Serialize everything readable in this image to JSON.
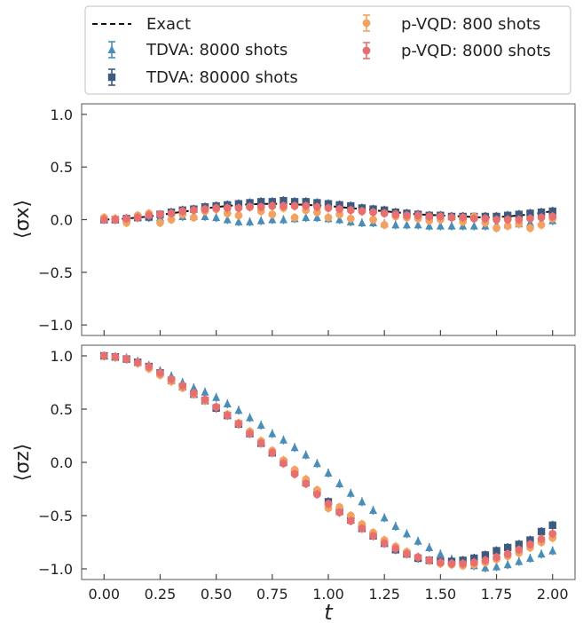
{
  "chart_data": [
    {
      "type": "scatter",
      "panel": "top",
      "title": "",
      "ylabel": "⟨σx⟩",
      "xlabel": "",
      "xlim": [
        -0.1,
        2.1
      ],
      "ylim": [
        -1.1,
        1.1
      ],
      "xticks": [
        0.0,
        0.25,
        0.5,
        0.75,
        1.0,
        1.25,
        1.5,
        1.75,
        2.0
      ],
      "yticks": [
        -1.0,
        -0.5,
        0.0,
        0.5,
        1.0
      ],
      "ytick_labels": [
        "−1.0",
        "−0.5",
        "0.0",
        "0.5",
        "1.0"
      ],
      "x": [
        0.0,
        0.05,
        0.1,
        0.15,
        0.2,
        0.25,
        0.3,
        0.35,
        0.4,
        0.45,
        0.5,
        0.55,
        0.6,
        0.65,
        0.7,
        0.75,
        0.8,
        0.85,
        0.9,
        0.95,
        1.0,
        1.05,
        1.1,
        1.15,
        1.2,
        1.25,
        1.3,
        1.35,
        1.4,
        1.45,
        1.5,
        1.55,
        1.6,
        1.65,
        1.7,
        1.75,
        1.8,
        1.85,
        1.9,
        1.95,
        2.0
      ],
      "series": [
        {
          "name": "Exact",
          "style": "dashed-line",
          "color": "#111111",
          "x": [
            0.0,
            0.1,
            0.2,
            0.3,
            0.4,
            0.5,
            0.6,
            0.7,
            0.8,
            0.9,
            1.0,
            1.1,
            1.2,
            1.3,
            1.4,
            1.5,
            1.6,
            1.7,
            1.8,
            1.9,
            2.0
          ],
          "values": [
            0.0,
            0.01,
            0.03,
            0.06,
            0.09,
            0.12,
            0.14,
            0.15,
            0.15,
            0.14,
            0.13,
            0.11,
            0.09,
            0.07,
            0.05,
            0.04,
            0.03,
            0.02,
            0.03,
            0.05,
            0.08
          ]
        },
        {
          "name": "TDVA: 8000 shots",
          "marker": "triangle",
          "color": "#4a8db8",
          "values": [
            0.0,
            0.0,
            0.01,
            0.02,
            0.02,
            0.02,
            0.03,
            0.03,
            0.03,
            0.03,
            0.02,
            0.0,
            -0.02,
            -0.02,
            -0.01,
            0.0,
            0.0,
            0.01,
            0.02,
            0.02,
            0.01,
            0.0,
            -0.02,
            -0.03,
            -0.03,
            -0.04,
            -0.05,
            -0.05,
            -0.05,
            -0.06,
            -0.06,
            -0.06,
            -0.06,
            -0.06,
            -0.06,
            -0.05,
            -0.05,
            -0.04,
            -0.03,
            -0.02,
            -0.01
          ]
        },
        {
          "name": "TDVA: 80000 shots",
          "marker": "square",
          "color": "#3d5a80",
          "values": [
            0.0,
            0.0,
            0.01,
            0.02,
            0.03,
            0.05,
            0.07,
            0.09,
            0.1,
            0.12,
            0.13,
            0.14,
            0.15,
            0.16,
            0.17,
            0.17,
            0.18,
            0.17,
            0.17,
            0.16,
            0.15,
            0.14,
            0.13,
            0.11,
            0.1,
            0.09,
            0.07,
            0.06,
            0.05,
            0.04,
            0.04,
            0.03,
            0.03,
            0.03,
            0.03,
            0.03,
            0.04,
            0.05,
            0.06,
            0.07,
            0.08
          ]
        },
        {
          "name": "p-VQD: 800 shots",
          "marker": "circle",
          "color": "#f4a261",
          "values": [
            0.02,
            0.01,
            -0.03,
            0.04,
            0.06,
            -0.03,
            0.0,
            0.05,
            0.02,
            0.08,
            0.1,
            0.06,
            0.04,
            0.12,
            0.08,
            0.05,
            0.11,
            0.02,
            0.09,
            0.07,
            0.02,
            0.05,
            0.01,
            0.08,
            0.0,
            -0.05,
            0.03,
            0.02,
            0.01,
            -0.01,
            0.0,
            0.02,
            -0.02,
            0.03,
            -0.03,
            -0.08,
            -0.06,
            -0.04,
            -0.08,
            -0.05,
            0.01
          ]
        },
        {
          "name": "p-VQD: 8000 shots",
          "marker": "circle",
          "color": "#e76f6f",
          "values": [
            0.0,
            0.0,
            0.01,
            0.02,
            0.04,
            0.05,
            0.06,
            0.08,
            0.09,
            0.1,
            0.11,
            0.11,
            0.11,
            0.12,
            0.12,
            0.13,
            0.13,
            0.13,
            0.13,
            0.12,
            0.11,
            0.1,
            0.09,
            0.08,
            0.07,
            0.06,
            0.05,
            0.04,
            0.04,
            0.03,
            0.03,
            0.02,
            0.02,
            0.01,
            0.01,
            0.0,
            0.0,
            0.0,
            0.01,
            0.02,
            0.03
          ]
        }
      ]
    },
    {
      "type": "scatter",
      "panel": "bottom",
      "title": "",
      "ylabel": "⟨σz⟩",
      "xlabel": "t",
      "xlim": [
        -0.1,
        2.1
      ],
      "ylim": [
        -1.1,
        1.1
      ],
      "xticks": [
        0.0,
        0.25,
        0.5,
        0.75,
        1.0,
        1.25,
        1.5,
        1.75,
        2.0
      ],
      "xtick_labels": [
        "0.00",
        "0.25",
        "0.50",
        "0.75",
        "1.00",
        "1.25",
        "1.50",
        "1.75",
        "2.00"
      ],
      "yticks": [
        -1.0,
        -0.5,
        0.0,
        0.5,
        1.0
      ],
      "ytick_labels": [
        "−1.0",
        "−0.5",
        "0.0",
        "0.5",
        "1.0"
      ],
      "x": [
        0.0,
        0.05,
        0.1,
        0.15,
        0.2,
        0.25,
        0.3,
        0.35,
        0.4,
        0.45,
        0.5,
        0.55,
        0.6,
        0.65,
        0.7,
        0.75,
        0.8,
        0.85,
        0.9,
        0.95,
        1.0,
        1.05,
        1.1,
        1.15,
        1.2,
        1.25,
        1.3,
        1.35,
        1.4,
        1.45,
        1.5,
        1.55,
        1.6,
        1.65,
        1.7,
        1.75,
        1.8,
        1.85,
        1.9,
        1.95,
        2.0
      ],
      "series": [
        {
          "name": "TDVA: 8000 shots",
          "marker": "triangle",
          "color": "#4a8db8",
          "values": [
            1.0,
            0.99,
            0.98,
            0.95,
            0.91,
            0.86,
            0.81,
            0.75,
            0.7,
            0.66,
            0.61,
            0.55,
            0.49,
            0.42,
            0.35,
            0.27,
            0.21,
            0.14,
            0.07,
            -0.01,
            -0.1,
            -0.2,
            -0.29,
            -0.37,
            -0.45,
            -0.52,
            -0.6,
            -0.67,
            -0.74,
            -0.8,
            -0.86,
            -0.91,
            -0.95,
            -0.97,
            -0.99,
            -0.98,
            -0.96,
            -0.93,
            -0.9,
            -0.86,
            -0.83
          ]
        },
        {
          "name": "TDVA: 80000 shots",
          "marker": "square",
          "color": "#3d5a80",
          "values": [
            1.0,
            0.99,
            0.97,
            0.94,
            0.9,
            0.84,
            0.77,
            0.71,
            0.64,
            0.58,
            0.51,
            0.44,
            0.36,
            0.27,
            0.18,
            0.09,
            0.0,
            -0.09,
            -0.19,
            -0.28,
            -0.37,
            -0.46,
            -0.54,
            -0.62,
            -0.69,
            -0.76,
            -0.82,
            -0.86,
            -0.9,
            -0.92,
            -0.93,
            -0.93,
            -0.92,
            -0.9,
            -0.87,
            -0.83,
            -0.8,
            -0.77,
            -0.73,
            -0.65,
            -0.59
          ]
        },
        {
          "name": "p-VQD: 800 shots",
          "marker": "circle",
          "color": "#f4a261",
          "values": [
            1.0,
            0.99,
            0.97,
            0.93,
            0.88,
            0.82,
            0.76,
            0.7,
            0.64,
            0.58,
            0.52,
            0.45,
            0.37,
            0.29,
            0.2,
            0.11,
            0.02,
            -0.07,
            -0.16,
            -0.26,
            -0.43,
            -0.42,
            -0.5,
            -0.58,
            -0.66,
            -0.73,
            -0.79,
            -0.84,
            -0.89,
            -0.92,
            -0.95,
            -0.96,
            -0.97,
            -0.96,
            -0.94,
            -0.91,
            -0.88,
            -0.85,
            -0.8,
            -0.75,
            -0.71
          ]
        },
        {
          "name": "p-VQD: 8000 shots",
          "marker": "circle",
          "color": "#e76f6f",
          "values": [
            1.0,
            0.99,
            0.97,
            0.94,
            0.9,
            0.84,
            0.78,
            0.72,
            0.65,
            0.59,
            0.52,
            0.44,
            0.36,
            0.27,
            0.18,
            0.09,
            -0.01,
            -0.11,
            -0.2,
            -0.3,
            -0.39,
            -0.47,
            -0.55,
            -0.62,
            -0.69,
            -0.76,
            -0.81,
            -0.86,
            -0.89,
            -0.92,
            -0.94,
            -0.95,
            -0.95,
            -0.94,
            -0.92,
            -0.89,
            -0.86,
            -0.82,
            -0.77,
            -0.72,
            -0.67
          ]
        }
      ]
    }
  ],
  "legend": {
    "placement": "top",
    "entries": [
      {
        "label": "Exact",
        "marker": "dashed-line",
        "color": "#111111"
      },
      {
        "label": "TDVA: 8000 shots",
        "marker": "triangle",
        "color": "#4a8db8"
      },
      {
        "label": "TDVA: 80000 shots",
        "marker": "square",
        "color": "#3d5a80"
      },
      {
        "label": "p-VQD: 800 shots",
        "marker": "circle",
        "color": "#f4a261"
      },
      {
        "label": "p-VQD: 8000 shots",
        "marker": "circle",
        "color": "#e76f6f"
      }
    ]
  }
}
